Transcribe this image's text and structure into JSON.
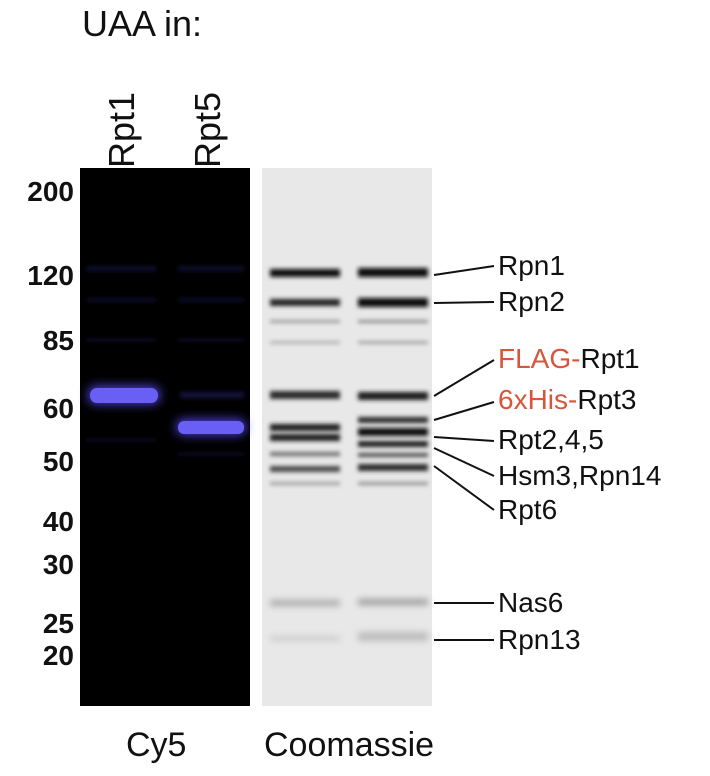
{
  "header": {
    "title": "UAA in:"
  },
  "lanes": [
    {
      "label": "Rpt1"
    },
    {
      "label": "Rpt5"
    }
  ],
  "markers": [
    "200",
    "120",
    "85",
    "60",
    "50",
    "40",
    "30",
    "25",
    "20"
  ],
  "annotations": [
    {
      "prefix": "",
      "name": "Rpn1"
    },
    {
      "prefix": "",
      "name": "Rpn2"
    },
    {
      "prefix": "FLAG-",
      "name": "Rpt1"
    },
    {
      "prefix": "6xHis-",
      "name": "Rpt3"
    },
    {
      "prefix": "",
      "name": "Rpt2,4,5"
    },
    {
      "prefix": "",
      "name": "Hsm3,Rpn14"
    },
    {
      "prefix": "",
      "name": "Rpt6"
    },
    {
      "prefix": "",
      "name": "Nas6"
    },
    {
      "prefix": "",
      "name": "Rpn13"
    }
  ],
  "captions": {
    "left": "Cy5",
    "right": "Coomassie"
  },
  "colors": {
    "tag": "#d9553a",
    "fluorescent_band": "#5a4ff0",
    "gel_dark": "#000000",
    "gel_light": "#e9e9e9"
  }
}
